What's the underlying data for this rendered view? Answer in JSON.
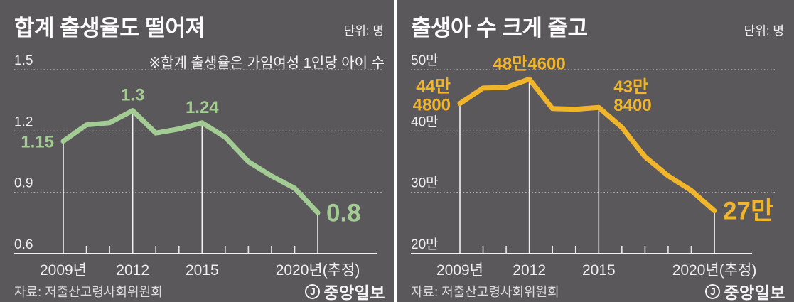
{
  "page": {
    "background_color": "#5a585a",
    "divider_color": "#ffffff"
  },
  "brand": {
    "logo_mark": "J",
    "logo_text": "중앙일보"
  },
  "charts": [
    {
      "title": "합계 출생율도 떨어져",
      "unit_label": "단위: 명",
      "note": "※합계 출생율은 가임여성 1인당 아이 수",
      "source": "자료: 저출산고령사회위원회",
      "line_color": "#a3cb94",
      "chart_data": {
        "type": "line",
        "title": "합계 출생율도 떨어져",
        "unit": "명",
        "x": [
          2009,
          2010,
          2011,
          2012,
          2013,
          2014,
          2015,
          2016,
          2017,
          2018,
          2019,
          2020
        ],
        "values": [
          1.15,
          1.23,
          1.24,
          1.3,
          1.19,
          1.21,
          1.24,
          1.17,
          1.05,
          0.98,
          0.92,
          0.8
        ],
        "ylim": [
          0.6,
          1.5
        ],
        "grid": "horizontal-dotted",
        "legend": "none",
        "y_ticks": [
          {
            "value": 1.5,
            "label": "1.5"
          },
          {
            "value": 1.2,
            "label": "1.2"
          },
          {
            "value": 0.9,
            "label": "0.9"
          },
          {
            "value": 0.6,
            "label": "0.6"
          }
        ],
        "x_ticks": [
          {
            "x": 2009,
            "label": "2009년"
          },
          {
            "x": 2012,
            "label": "2012"
          },
          {
            "x": 2015,
            "label": "2015"
          },
          {
            "x": 2020,
            "label": "2020년(추정)"
          }
        ],
        "point_labels": [
          {
            "x": 2009,
            "lines": [
              "1.15"
            ],
            "placement": "left",
            "emphasis": false
          },
          {
            "x": 2012,
            "lines": [
              "1.3"
            ],
            "placement": "top",
            "emphasis": false
          },
          {
            "x": 2015,
            "lines": [
              "1.24"
            ],
            "placement": "top",
            "emphasis": false
          },
          {
            "x": 2020,
            "lines": [
              "0.8"
            ],
            "placement": "right",
            "emphasis": true
          }
        ]
      }
    },
    {
      "title": "출생아 수 크게 줄고",
      "unit_label": "단위: 명",
      "note": "",
      "source": "자료: 저출산고령사회위원회",
      "line_color": "#f1b52c",
      "chart_data": {
        "type": "line",
        "title": "출생아 수 크게 줄고",
        "unit": "명 (values in 만 = 10,000s)",
        "x": [
          2009,
          2010,
          2011,
          2012,
          2013,
          2014,
          2015,
          2016,
          2017,
          2018,
          2019,
          2020
        ],
        "values": [
          44.48,
          47.0,
          47.1,
          48.46,
          43.65,
          43.54,
          43.84,
          40.6,
          35.8,
          32.7,
          30.3,
          27.0
        ],
        "ylim": [
          20,
          50
        ],
        "grid": "horizontal-dotted",
        "legend": "none",
        "y_ticks": [
          {
            "value": 50,
            "label": "50만"
          },
          {
            "value": 40,
            "label": "40만"
          },
          {
            "value": 30,
            "label": "30만"
          },
          {
            "value": 20,
            "label": "20만"
          }
        ],
        "x_ticks": [
          {
            "x": 2009,
            "label": "2009년"
          },
          {
            "x": 2012,
            "label": "2012"
          },
          {
            "x": 2015,
            "label": "2015"
          },
          {
            "x": 2020,
            "label": "2020년(추정)"
          }
        ],
        "point_labels": [
          {
            "x": 2009,
            "lines": [
              "44만",
              "4800"
            ],
            "placement": "left",
            "emphasis": false
          },
          {
            "x": 2012,
            "lines": [
              "48만4600"
            ],
            "placement": "top",
            "emphasis": false
          },
          {
            "x": 2015,
            "lines": [
              "43만",
              "8400"
            ],
            "placement": "top-right",
            "emphasis": false
          },
          {
            "x": 2020,
            "lines": [
              "27만"
            ],
            "placement": "right",
            "emphasis": true
          }
        ]
      }
    }
  ]
}
